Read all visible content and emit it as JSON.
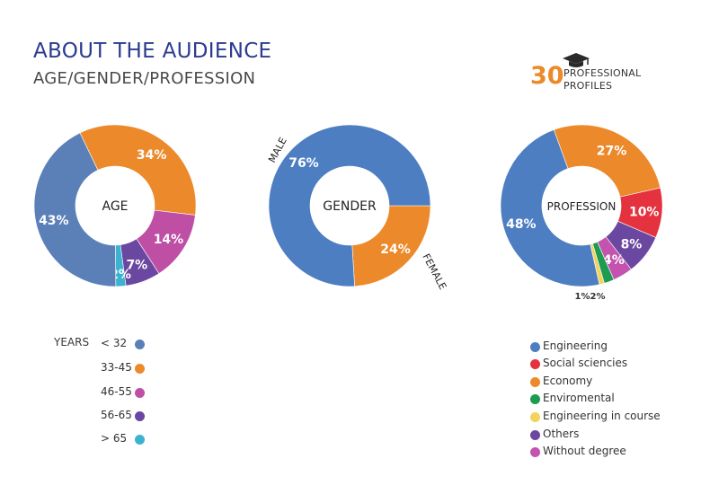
{
  "title": "ABOUT THE AUDIENCE",
  "subtitle": "AGE/GENDER/PROFESSION",
  "badge": {
    "number": "30",
    "line1": "PROFESSIONAL",
    "line2": "PROFILES",
    "icon": "graduation-cap-icon"
  },
  "chart_data": [
    {
      "type": "pie",
      "center_label": "AGE",
      "legend_title": "YEARS",
      "legend_placement": "bottom-left",
      "slices": [
        {
          "label": "< 32",
          "value": 43,
          "display": "43%",
          "color": "#5b80b8"
        },
        {
          "label": "33-45",
          "value": 34,
          "display": "34%",
          "color": "#ec8a2b"
        },
        {
          "label": "46-55",
          "value": 14,
          "display": "14%",
          "color": "#bf4fa5"
        },
        {
          "label": "56-65",
          "value": 7,
          "display": "7%",
          "color": "#6a47a0"
        },
        {
          "label": "> 65",
          "value": 2,
          "display": "2%",
          "color": "#3bb3d0"
        }
      ]
    },
    {
      "type": "pie",
      "center_label": "GENDER",
      "slices": [
        {
          "label": "MALE",
          "value": 76,
          "display": "76%",
          "color": "#4d7ec2"
        },
        {
          "label": "FEMALE",
          "value": 24,
          "display": "24%",
          "color": "#ec8a2b"
        }
      ]
    },
    {
      "type": "pie",
      "center_label": "PROFESSION",
      "legend_placement": "bottom-right",
      "slices": [
        {
          "label": "Engineering",
          "value": 48,
          "display": "48%",
          "color": "#4d7ec2"
        },
        {
          "label": "Social sciencies",
          "value": 10,
          "display": "10%",
          "color": "#e4323e"
        },
        {
          "label": "Economy",
          "value": 27,
          "display": "27%",
          "color": "#ec8a2b"
        },
        {
          "label": "Enviromental",
          "value": 2,
          "display": "2%",
          "color": "#1d9b50"
        },
        {
          "label": "Engineering in course",
          "value": 1,
          "display": "1%",
          "color": "#f3d35e"
        },
        {
          "label": "Others",
          "value": 8,
          "display": "8%",
          "color": "#6a47a0"
        },
        {
          "label": "Without degree",
          "value": 4,
          "display": "4%",
          "color": "#c353ae"
        }
      ]
    }
  ]
}
